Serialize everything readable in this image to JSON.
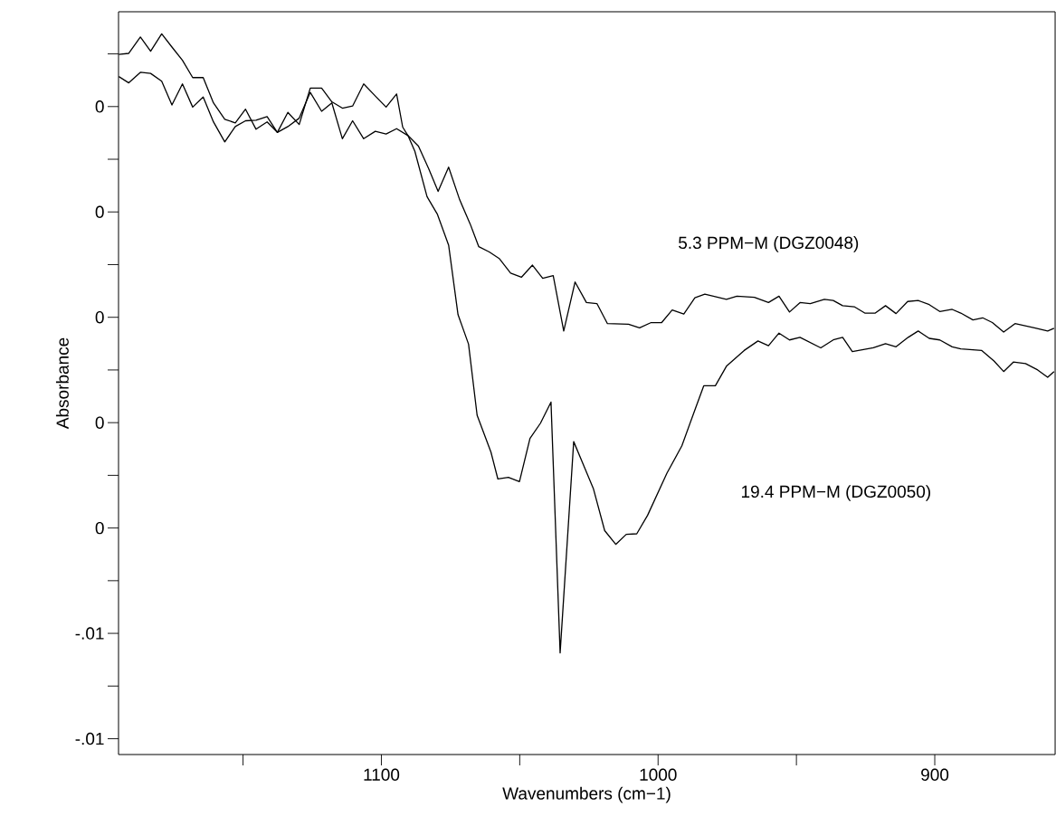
{
  "chart_data": {
    "type": "line",
    "xlabel": "Wavenumbers (cm−1)",
    "ylabel": "Absorbance",
    "xlim": [
      1195,
      856.5
    ],
    "ylim": [
      -0.0083,
      0.0058
    ],
    "xticks": [
      {
        "value": 1150,
        "label": null
      },
      1100,
      {
        "value": 1050,
        "label": null
      },
      1000,
      {
        "value": 950,
        "label": null
      },
      900
    ],
    "yticks": [
      {
        "value": 0.005,
        "label": null
      },
      {
        "value": 0.004,
        "label": "0"
      },
      {
        "value": 0.003,
        "label": null
      },
      {
        "value": 0.002,
        "label": "0"
      },
      {
        "value": 0.001,
        "label": null
      },
      {
        "value": 0,
        "label": "0"
      },
      {
        "value": -0.001,
        "label": null
      },
      {
        "value": -0.002,
        "label": "0"
      },
      {
        "value": -0.003,
        "label": null
      },
      {
        "value": -0.004,
        "label": "0"
      },
      {
        "value": -0.005,
        "label": null
      },
      {
        "value": -0.006,
        "label": "-.01"
      },
      {
        "value": -0.007,
        "label": null
      },
      {
        "value": -0.008,
        "label": "-.01"
      }
    ],
    "series": [
      {
        "color": "#000000",
        "x": [
          1194.9,
          1191.3,
          1187.1,
          1183.4,
          1179.4,
          1175.7,
          1171.9,
          1168.2,
          1164.4,
          1160.7,
          1156.6,
          1152.8,
          1149.1,
          1145.3,
          1141.3,
          1137.6,
          1133.8,
          1129.7,
          1125.7,
          1121.6,
          1117.9,
          1114.1,
          1110.4,
          1106.4,
          1102.2,
          1098.3,
          1094.5,
          1090.4,
          1086.6,
          1082.9,
          1079.5,
          1075.7,
          1071.7,
          1067.9,
          1064.8,
          1061.0,
          1057.3,
          1053.3,
          1049.4,
          1045.4,
          1041.7,
          1037.9,
          1034.1,
          1030.0,
          1025.9,
          1022.1,
          1018.3,
          1010.7,
          1006.7,
          1002.5,
          998.7,
          994.9,
          990.7,
          986.7,
          983.1,
          975.3,
          971.5,
          965.2,
          960.1,
          956.3,
          952.5,
          948.7,
          945.0,
          939.9,
          936.7,
          933.3,
          929.1,
          925.3,
          921.5,
          917.8,
          914.0,
          909.8,
          906.0,
          902.0,
          898.2,
          893.7,
          890.6,
          886.2,
          882.7,
          879.2,
          875.1,
          871.0,
          864.0,
          859.2,
          856.9
        ],
        "values": [
          0.00457,
          0.00445,
          0.00465,
          0.00463,
          0.00448,
          0.00403,
          0.00443,
          0.00399,
          0.00418,
          0.00371,
          0.00333,
          0.00362,
          0.00373,
          0.00374,
          0.00381,
          0.00351,
          0.00362,
          0.00378,
          0.00427,
          0.00391,
          0.00407,
          0.00339,
          0.00373,
          0.00339,
          0.00353,
          0.00348,
          0.00358,
          0.00345,
          0.00325,
          0.00282,
          0.00239,
          0.00285,
          0.00223,
          0.00177,
          0.00134,
          0.00124,
          0.00111,
          0.00084,
          0.00076,
          0.00099,
          0.00074,
          0.00079,
          -0.00026,
          0.00067,
          0.00028,
          0.00026,
          -0.00012,
          -0.00013,
          -0.0002,
          -0.0001,
          -0.0001,
          0.00014,
          6e-05,
          0.00037,
          0.00044,
          0.00034,
          0.0004,
          0.00038,
          0.00028,
          0.0004,
          0.0001,
          0.00028,
          0.00026,
          0.00034,
          0.00032,
          0.00022,
          0.0002,
          8e-05,
          8e-05,
          0.00022,
          7e-05,
          0.0003,
          0.00032,
          0.00024,
          0.00011,
          0.00015,
          8e-05,
          -5e-05,
          -1e-05,
          -0.0001,
          -0.00028,
          -0.00012,
          -0.0002,
          -0.00026,
          -0.00021
        ]
      },
      {
        "color": "#000000",
        "x": [
          1194.9,
          1191.3,
          1187.1,
          1183.4,
          1179.4,
          1175.7,
          1171.9,
          1168.2,
          1164.4,
          1160.7,
          1156.6,
          1152.8,
          1149.1,
          1145.3,
          1141.3,
          1137.6,
          1133.8,
          1129.7,
          1125.7,
          1121.6,
          1117.9,
          1114.1,
          1110.4,
          1106.4,
          1102.2,
          1098.3,
          1094.5,
          1092.3,
          1090.4,
          1087.9,
          1083.5,
          1079.8,
          1075.7,
          1072.3,
          1068.5,
          1065.4,
          1060.4,
          1057.9,
          1054.1,
          1050.1,
          1046.3,
          1042.5,
          1038.7,
          1035.4,
          1030.5,
          1023.4,
          1019.3,
          1015.3,
          1011.5,
          1007.7,
          1003.8,
          996.8,
          991.4,
          986.5,
          983.5,
          979.3,
          975.3,
          968.9,
          963.9,
          960.1,
          956.3,
          952.5,
          948.7,
          941.2,
          936.7,
          933.3,
          929.8,
          922.2,
          917.8,
          914.0,
          909.6,
          906.0,
          902.0,
          898.2,
          893.7,
          890.6,
          883.0,
          878.6,
          875.1,
          871.6,
          867.2,
          862.8,
          859.2,
          856.9
        ],
        "values": [
          0.00499,
          0.00501,
          0.00532,
          0.00505,
          0.00538,
          0.00513,
          0.00488,
          0.00455,
          0.00455,
          0.00407,
          0.00376,
          0.00369,
          0.00395,
          0.00357,
          0.00371,
          0.00351,
          0.00389,
          0.00366,
          0.00435,
          0.00435,
          0.00409,
          0.00397,
          0.00401,
          0.00443,
          0.0042,
          0.00399,
          0.00424,
          0.00361,
          0.00345,
          0.00315,
          0.00229,
          0.00196,
          0.00137,
          5e-05,
          -0.00051,
          -0.00186,
          -0.00256,
          -0.00307,
          -0.00304,
          -0.00312,
          -0.0023,
          -0.00201,
          -0.00161,
          -0.00637,
          -0.00236,
          -0.00325,
          -0.00405,
          -0.00431,
          -0.00412,
          -0.00411,
          -0.00376,
          -0.00296,
          -0.00244,
          -0.00173,
          -0.0013,
          -0.0013,
          -0.00093,
          -0.00063,
          -0.00045,
          -0.00054,
          -0.0003,
          -0.00043,
          -0.00038,
          -0.00058,
          -0.00043,
          -0.00038,
          -0.00065,
          -0.00058,
          -0.0005,
          -0.00056,
          -0.00038,
          -0.00026,
          -0.0004,
          -0.00043,
          -0.00056,
          -0.0006,
          -0.00063,
          -0.00083,
          -0.00103,
          -0.00085,
          -0.00088,
          -0.001,
          -0.00114,
          -0.00103
        ]
      }
    ],
    "annotations": [
      "5.3 PPM−M (DGZ0048)",
      "19.4 PPM−M (DGZ0050)"
    ]
  }
}
